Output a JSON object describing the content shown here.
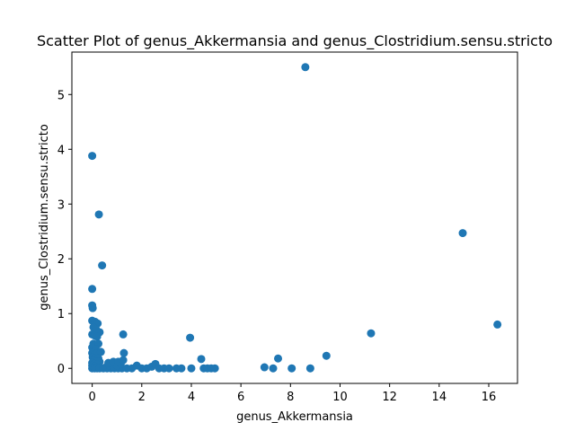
{
  "chart_data": {
    "type": "scatter",
    "title": "Scatter Plot of genus_Akkermansia and genus_Clostridium.sensu.stricto",
    "xlabel": "genus_Akkermansia",
    "ylabel": "genus_Clostridium.sensu.stricto",
    "xlim": [
      -0.82,
      17.16
    ],
    "ylim": [
      -0.275,
      5.775
    ],
    "xticks": [
      0,
      2,
      4,
      6,
      8,
      10,
      12,
      14,
      16
    ],
    "yticks": [
      0,
      1,
      2,
      3,
      4,
      5
    ],
    "grid": false,
    "color": "#1f77b4",
    "points": [
      [
        8.6,
        5.5
      ],
      [
        0.0,
        3.88
      ],
      [
        0.27,
        2.81
      ],
      [
        0.4,
        1.88
      ],
      [
        0.0,
        1.45
      ],
      [
        0.0,
        1.15
      ],
      [
        0.02,
        1.1
      ],
      [
        0.0,
        0.87
      ],
      [
        0.12,
        0.85
      ],
      [
        0.22,
        0.82
      ],
      [
        0.05,
        0.75
      ],
      [
        0.15,
        0.72
      ],
      [
        0.3,
        0.66
      ],
      [
        0.0,
        0.62
      ],
      [
        0.1,
        0.6
      ],
      [
        0.2,
        0.58
      ],
      [
        1.25,
        0.62
      ],
      [
        0.05,
        0.45
      ],
      [
        0.12,
        0.43
      ],
      [
        0.25,
        0.45
      ],
      [
        0.0,
        0.38
      ],
      [
        0.05,
        0.33
      ],
      [
        0.15,
        0.35
      ],
      [
        0.3,
        0.3
      ],
      [
        0.0,
        0.28
      ],
      [
        0.1,
        0.25
      ],
      [
        0.2,
        0.27
      ],
      [
        0.35,
        0.3
      ],
      [
        0.02,
        0.2
      ],
      [
        0.1,
        0.18
      ],
      [
        0.25,
        0.18
      ],
      [
        0.05,
        0.14
      ],
      [
        0.15,
        0.12
      ],
      [
        0.3,
        0.12
      ],
      [
        0.0,
        0.1
      ],
      [
        0.08,
        0.08
      ],
      [
        0.2,
        0.07
      ],
      [
        0.0,
        0.05
      ],
      [
        0.1,
        0.04
      ],
      [
        0.25,
        0.03
      ],
      [
        0.0,
        0.0
      ],
      [
        0.1,
        0.0
      ],
      [
        0.2,
        0.0
      ],
      [
        0.3,
        0.0
      ],
      [
        0.45,
        0.0
      ],
      [
        0.6,
        0.0
      ],
      [
        0.75,
        0.0
      ],
      [
        0.9,
        0.0
      ],
      [
        1.05,
        0.0
      ],
      [
        1.2,
        0.0
      ],
      [
        0.55,
        0.02
      ],
      [
        0.7,
        0.05
      ],
      [
        0.85,
        0.03
      ],
      [
        1.0,
        0.05
      ],
      [
        1.15,
        0.08
      ],
      [
        0.65,
        0.1
      ],
      [
        0.85,
        0.12
      ],
      [
        1.05,
        0.12
      ],
      [
        1.25,
        0.15
      ],
      [
        1.28,
        0.28
      ],
      [
        1.4,
        0.0
      ],
      [
        1.6,
        0.0
      ],
      [
        1.8,
        0.05
      ],
      [
        2.0,
        0.0
      ],
      [
        2.2,
        0.0
      ],
      [
        2.4,
        0.03
      ],
      [
        2.55,
        0.08
      ],
      [
        2.7,
        0.0
      ],
      [
        2.9,
        0.0
      ],
      [
        3.1,
        0.0
      ],
      [
        3.4,
        0.0
      ],
      [
        3.6,
        0.0
      ],
      [
        3.95,
        0.56
      ],
      [
        4.0,
        0.0
      ],
      [
        4.4,
        0.17
      ],
      [
        4.5,
        0.0
      ],
      [
        4.65,
        0.0
      ],
      [
        4.8,
        0.0
      ],
      [
        4.95,
        0.0
      ],
      [
        6.95,
        0.02
      ],
      [
        7.3,
        0.0
      ],
      [
        7.5,
        0.18
      ],
      [
        8.05,
        0.0
      ],
      [
        8.8,
        0.0
      ],
      [
        9.45,
        0.23
      ],
      [
        11.25,
        0.64
      ],
      [
        14.95,
        2.47
      ],
      [
        16.35,
        0.8
      ]
    ]
  }
}
